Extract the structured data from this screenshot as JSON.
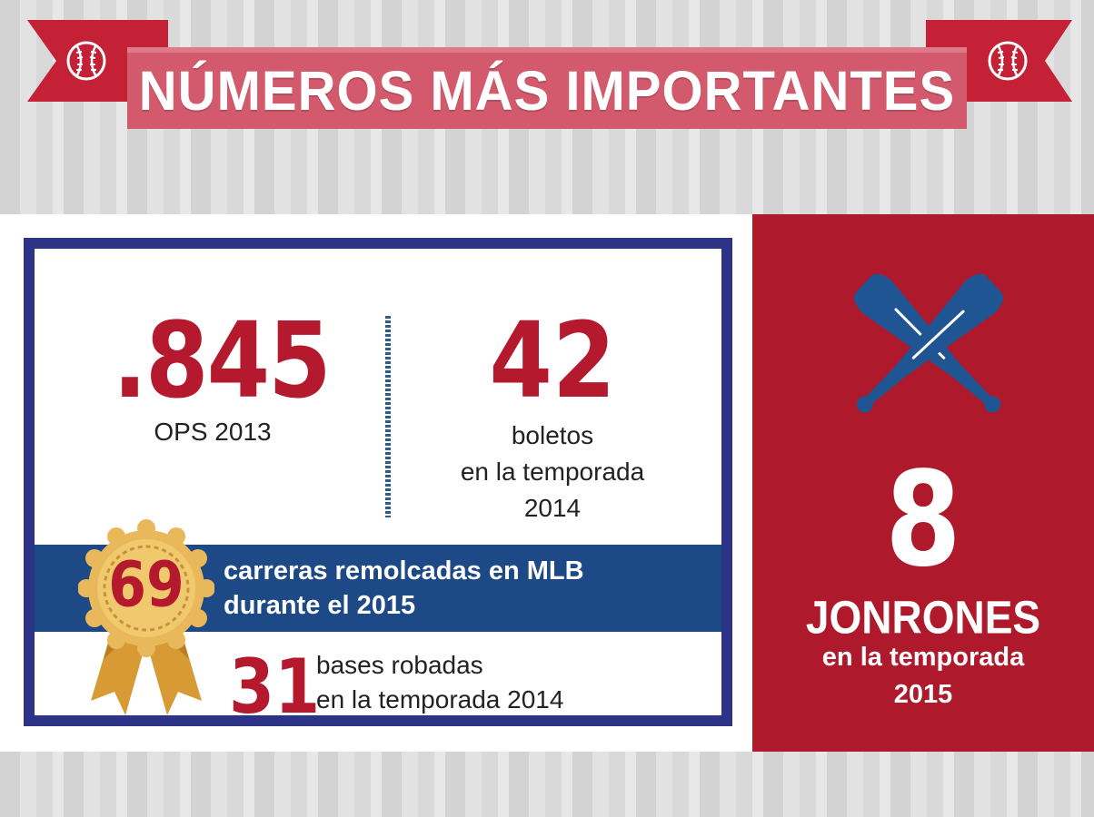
{
  "title": "NÚMEROS MÁS IMPORTANTES",
  "colors": {
    "red": "#b4192e",
    "dark_red": "#ae1a2b",
    "navy": "#2d3485",
    "blue_band": "#1d4a86",
    "banner_pink": "#d35a6c",
    "gold": "#e4b04a"
  },
  "stats": {
    "ops": {
      "value": ".845",
      "label": "OPS 2013"
    },
    "walks": {
      "value": "42",
      "label_lines": [
        "boletos",
        "en la temporada",
        "2014"
      ]
    },
    "rbi": {
      "value": "69",
      "label_lines": [
        "carreras remolcadas en MLB",
        "durante el 2015"
      ]
    },
    "stolen_bases": {
      "value": "31",
      "label_lines": [
        "bases robadas",
        "en la temporada 2014"
      ]
    },
    "home_runs": {
      "value": "8",
      "label": "JONRONES",
      "sub_lines": [
        "en la temporada",
        "2015"
      ]
    }
  },
  "icons": [
    "baseball-icon",
    "baseball-icon",
    "crossed-bats-icon",
    "award-medal-icon"
  ]
}
